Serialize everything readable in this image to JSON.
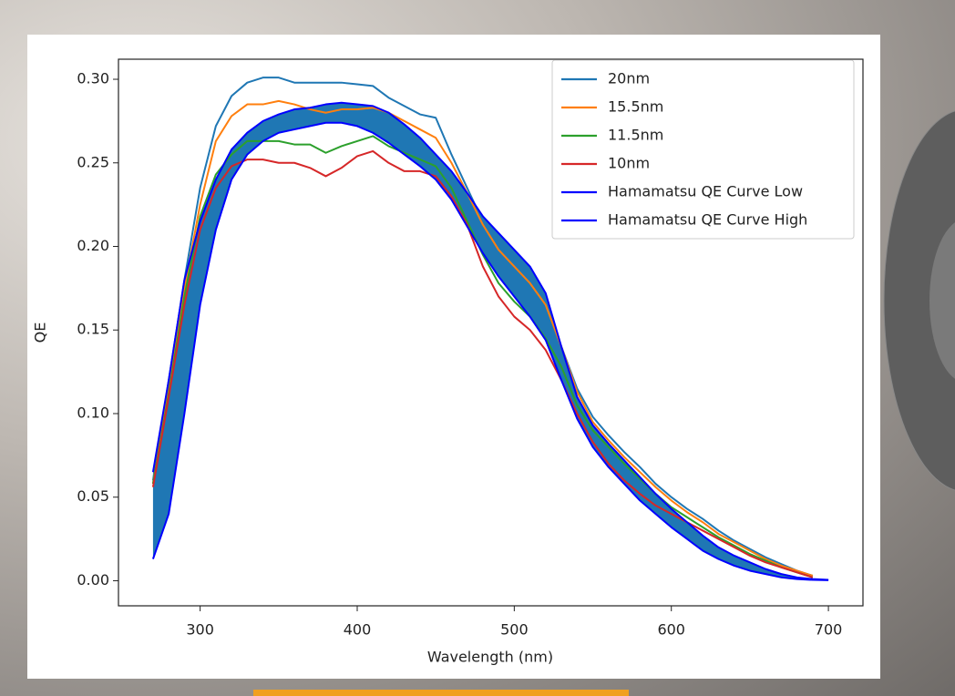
{
  "chart_data": {
    "type": "line",
    "x_label": "Wavelength (nm)",
    "y_label": "QE",
    "xlim": [
      248,
      722
    ],
    "ylim": [
      -0.015,
      0.312
    ],
    "xticks": [
      300,
      400,
      500,
      600,
      700
    ],
    "yticks": [
      {
        "value": 0,
        "label": "0.00"
      },
      {
        "value": 0.05,
        "label": "0.05"
      },
      {
        "value": 0.1,
        "label": "0.10"
      },
      {
        "value": 0.15,
        "label": "0.15"
      },
      {
        "value": 0.2,
        "label": "0.20"
      },
      {
        "value": 0.25,
        "label": "0.25"
      },
      {
        "value": 0.3,
        "label": "0.30"
      }
    ],
    "grid": false,
    "legend": "upper right",
    "fill_between": [
      4,
      5
    ],
    "fill_color": "#1f77b4",
    "series": [
      {
        "name": "20nm",
        "color": "#1f77b4",
        "x": [
          270,
          280,
          290,
          300,
          310,
          320,
          330,
          340,
          350,
          360,
          370,
          380,
          390,
          400,
          410,
          420,
          430,
          440,
          450,
          460,
          470,
          480,
          490,
          500,
          510,
          520,
          530,
          540,
          550,
          560,
          570,
          580,
          590,
          600,
          610,
          620,
          630,
          640,
          650,
          660,
          670,
          680,
          690
        ],
        "values": [
          0.06,
          0.12,
          0.18,
          0.235,
          0.272,
          0.29,
          0.298,
          0.301,
          0.301,
          0.298,
          0.298,
          0.298,
          0.298,
          0.297,
          0.296,
          0.289,
          0.284,
          0.279,
          0.277,
          0.255,
          0.235,
          0.215,
          0.2,
          0.19,
          0.178,
          0.165,
          0.14,
          0.115,
          0.098,
          0.087,
          0.077,
          0.068,
          0.058,
          0.05,
          0.043,
          0.037,
          0.03,
          0.024,
          0.019,
          0.014,
          0.01,
          0.006,
          0.003
        ]
      },
      {
        "name": "15.5nm",
        "color": "#ff7f0e",
        "x": [
          270,
          280,
          290,
          300,
          310,
          320,
          330,
          340,
          350,
          360,
          370,
          380,
          390,
          400,
          410,
          420,
          430,
          440,
          450,
          460,
          470,
          480,
          490,
          500,
          510,
          520,
          530,
          540,
          550,
          560,
          570,
          580,
          590,
          600,
          610,
          620,
          630,
          640,
          650,
          660,
          670,
          680,
          690
        ],
        "values": [
          0.058,
          0.115,
          0.175,
          0.225,
          0.263,
          0.278,
          0.285,
          0.285,
          0.287,
          0.285,
          0.282,
          0.28,
          0.282,
          0.282,
          0.283,
          0.28,
          0.275,
          0.27,
          0.265,
          0.25,
          0.232,
          0.213,
          0.198,
          0.188,
          0.178,
          0.165,
          0.14,
          0.113,
          0.095,
          0.084,
          0.074,
          0.065,
          0.056,
          0.048,
          0.041,
          0.035,
          0.028,
          0.023,
          0.018,
          0.013,
          0.009,
          0.006,
          0.003
        ]
      },
      {
        "name": "11.5nm",
        "color": "#2ca02c",
        "x": [
          270,
          280,
          290,
          300,
          310,
          320,
          330,
          340,
          350,
          360,
          370,
          380,
          390,
          400,
          410,
          420,
          430,
          440,
          450,
          460,
          470,
          480,
          490,
          500,
          510,
          520,
          530,
          540,
          550,
          560,
          570,
          580,
          590,
          600,
          610,
          620,
          630,
          640,
          650,
          660,
          670,
          680,
          690
        ],
        "values": [
          0.058,
          0.112,
          0.17,
          0.218,
          0.243,
          0.255,
          0.263,
          0.263,
          0.263,
          0.261,
          0.261,
          0.256,
          0.26,
          0.263,
          0.266,
          0.26,
          0.256,
          0.252,
          0.248,
          0.235,
          0.215,
          0.195,
          0.178,
          0.167,
          0.158,
          0.145,
          0.128,
          0.105,
          0.09,
          0.08,
          0.07,
          0.061,
          0.052,
          0.044,
          0.038,
          0.032,
          0.026,
          0.021,
          0.016,
          0.012,
          0.008,
          0.005,
          0.002
        ]
      },
      {
        "name": "10nm",
        "color": "#d62728",
        "x": [
          270,
          280,
          290,
          300,
          310,
          320,
          330,
          340,
          350,
          360,
          370,
          380,
          390,
          400,
          410,
          420,
          430,
          440,
          450,
          460,
          470,
          480,
          490,
          500,
          510,
          520,
          530,
          540,
          550,
          560,
          570,
          580,
          590,
          600,
          610,
          620,
          630,
          640,
          650,
          660,
          670,
          680,
          690
        ],
        "values": [
          0.056,
          0.11,
          0.165,
          0.21,
          0.235,
          0.248,
          0.252,
          0.252,
          0.25,
          0.25,
          0.247,
          0.242,
          0.247,
          0.254,
          0.257,
          0.25,
          0.245,
          0.245,
          0.242,
          0.23,
          0.213,
          0.188,
          0.17,
          0.158,
          0.15,
          0.138,
          0.12,
          0.1,
          0.083,
          0.07,
          0.06,
          0.052,
          0.045,
          0.04,
          0.035,
          0.03,
          0.025,
          0.02,
          0.015,
          0.011,
          0.008,
          0.005,
          0.002
        ]
      },
      {
        "name": "Hamamatsu QE Curve Low",
        "color": "#0000ff",
        "x": [
          270,
          280,
          290,
          300,
          310,
          320,
          330,
          340,
          350,
          360,
          370,
          380,
          390,
          400,
          410,
          420,
          430,
          440,
          450,
          460,
          470,
          480,
          490,
          500,
          510,
          520,
          530,
          540,
          550,
          560,
          570,
          580,
          590,
          600,
          610,
          620,
          630,
          640,
          650,
          660,
          670,
          680,
          690,
          700
        ],
        "values": [
          0.013,
          0.04,
          0.1,
          0.165,
          0.21,
          0.24,
          0.255,
          0.263,
          0.268,
          0.27,
          0.272,
          0.274,
          0.274,
          0.272,
          0.268,
          0.262,
          0.255,
          0.248,
          0.24,
          0.228,
          0.212,
          0.196,
          0.182,
          0.17,
          0.158,
          0.144,
          0.12,
          0.097,
          0.08,
          0.068,
          0.058,
          0.048,
          0.04,
          0.032,
          0.025,
          0.018,
          0.013,
          0.009,
          0.006,
          0.004,
          0.002,
          0.001,
          0.0005,
          0.0003
        ]
      },
      {
        "name": "Hamamatsu QE Curve High",
        "color": "#0000ff",
        "x": [
          270,
          280,
          290,
          300,
          310,
          320,
          330,
          340,
          350,
          360,
          370,
          380,
          390,
          400,
          410,
          420,
          430,
          440,
          450,
          460,
          470,
          480,
          490,
          500,
          510,
          520,
          530,
          540,
          550,
          560,
          570,
          580,
          590,
          600,
          610,
          620,
          630,
          640,
          650,
          660,
          670,
          680,
          690,
          700
        ],
        "values": [
          0.065,
          0.12,
          0.18,
          0.215,
          0.24,
          0.258,
          0.268,
          0.275,
          0.279,
          0.282,
          0.283,
          0.285,
          0.286,
          0.285,
          0.284,
          0.28,
          0.273,
          0.265,
          0.255,
          0.245,
          0.232,
          0.218,
          0.208,
          0.198,
          0.188,
          0.172,
          0.14,
          0.11,
          0.093,
          0.082,
          0.072,
          0.062,
          0.052,
          0.043,
          0.035,
          0.027,
          0.02,
          0.015,
          0.011,
          0.007,
          0.004,
          0.002,
          0.001,
          0.0005
        ]
      }
    ]
  }
}
